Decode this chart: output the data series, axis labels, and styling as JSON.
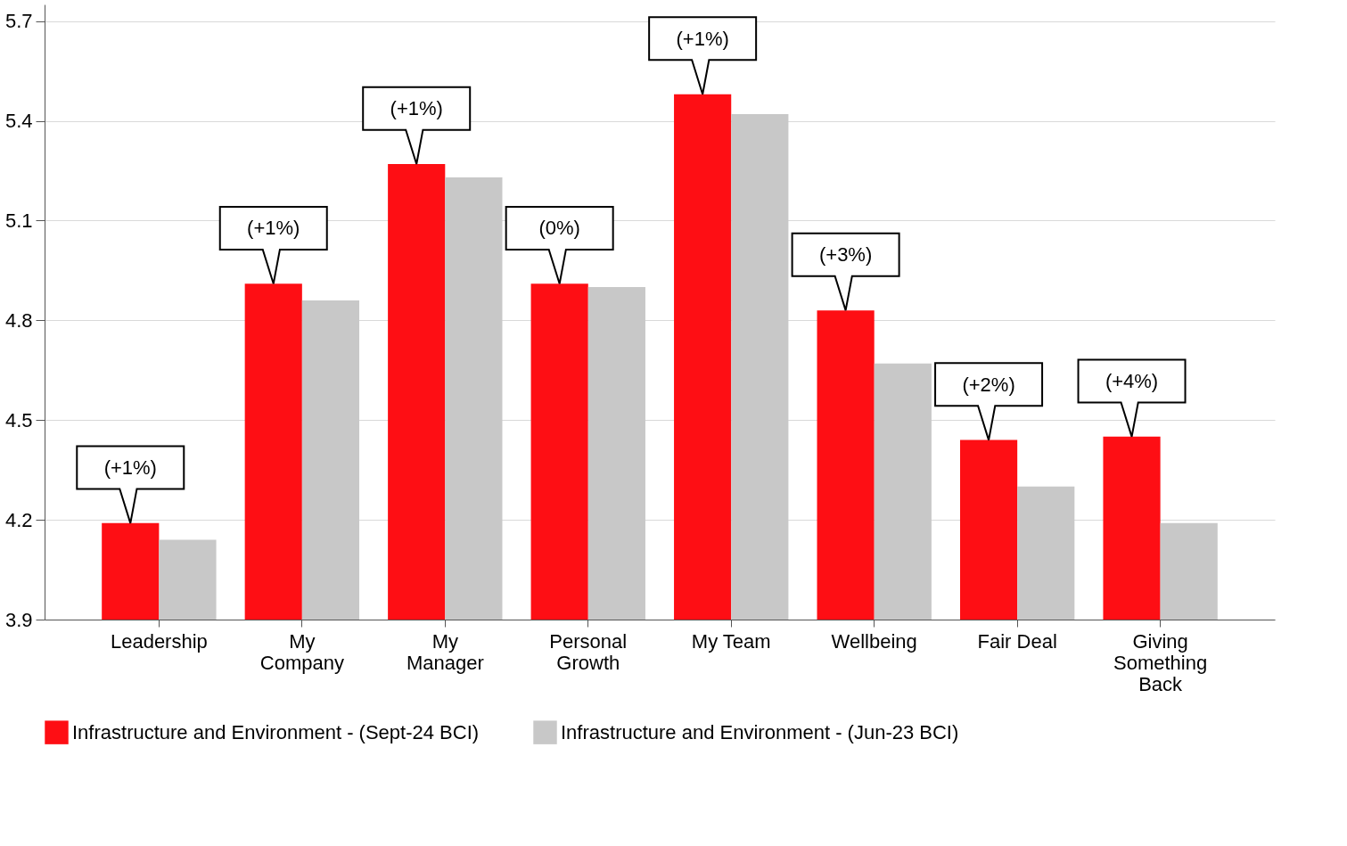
{
  "chart_data": {
    "type": "bar",
    "categories": [
      "Leadership",
      "My Company",
      "My Manager",
      "Personal Growth",
      "My Team",
      "Wellbeing",
      "Fair Deal",
      "Giving Something Back"
    ],
    "series": [
      {
        "name": "Infrastructure and Environment - (Sept-24 BCI)",
        "color": "#fe0e14",
        "values": [
          4.19,
          4.91,
          5.27,
          4.91,
          5.48,
          4.83,
          4.44,
          4.45
        ]
      },
      {
        "name": "Infrastructure and Environment - (Jun-23 BCI)",
        "color": "#c8c8c8",
        "values": [
          4.14,
          4.86,
          5.23,
          4.9,
          5.42,
          4.67,
          4.3,
          4.19
        ]
      }
    ],
    "annotations": [
      {
        "text": "(+1%)",
        "x": "Leadership",
        "y": 4.19
      },
      {
        "text": "(+1%)",
        "x": "My Company",
        "y": 4.91
      },
      {
        "text": "(+1%)",
        "x": "My Manager",
        "y": 5.27
      },
      {
        "text": "(0%)",
        "x": "Personal Growth",
        "y": 4.91
      },
      {
        "text": "(+1%)",
        "x": "My Team",
        "y": 5.48
      },
      {
        "text": "(+3%)",
        "x": "Wellbeing",
        "y": 4.83
      },
      {
        "text": "(+2%)",
        "x": "Fair Deal",
        "y": 4.44
      },
      {
        "text": "(+4%)",
        "x": "Giving Something Back",
        "y": 4.45
      }
    ],
    "ylim": [
      3.9,
      5.75
    ],
    "yticks": [
      3.9,
      4.2,
      4.5,
      4.8,
      5.1,
      5.4,
      5.7
    ],
    "grid": "y",
    "legend": "bottom"
  }
}
